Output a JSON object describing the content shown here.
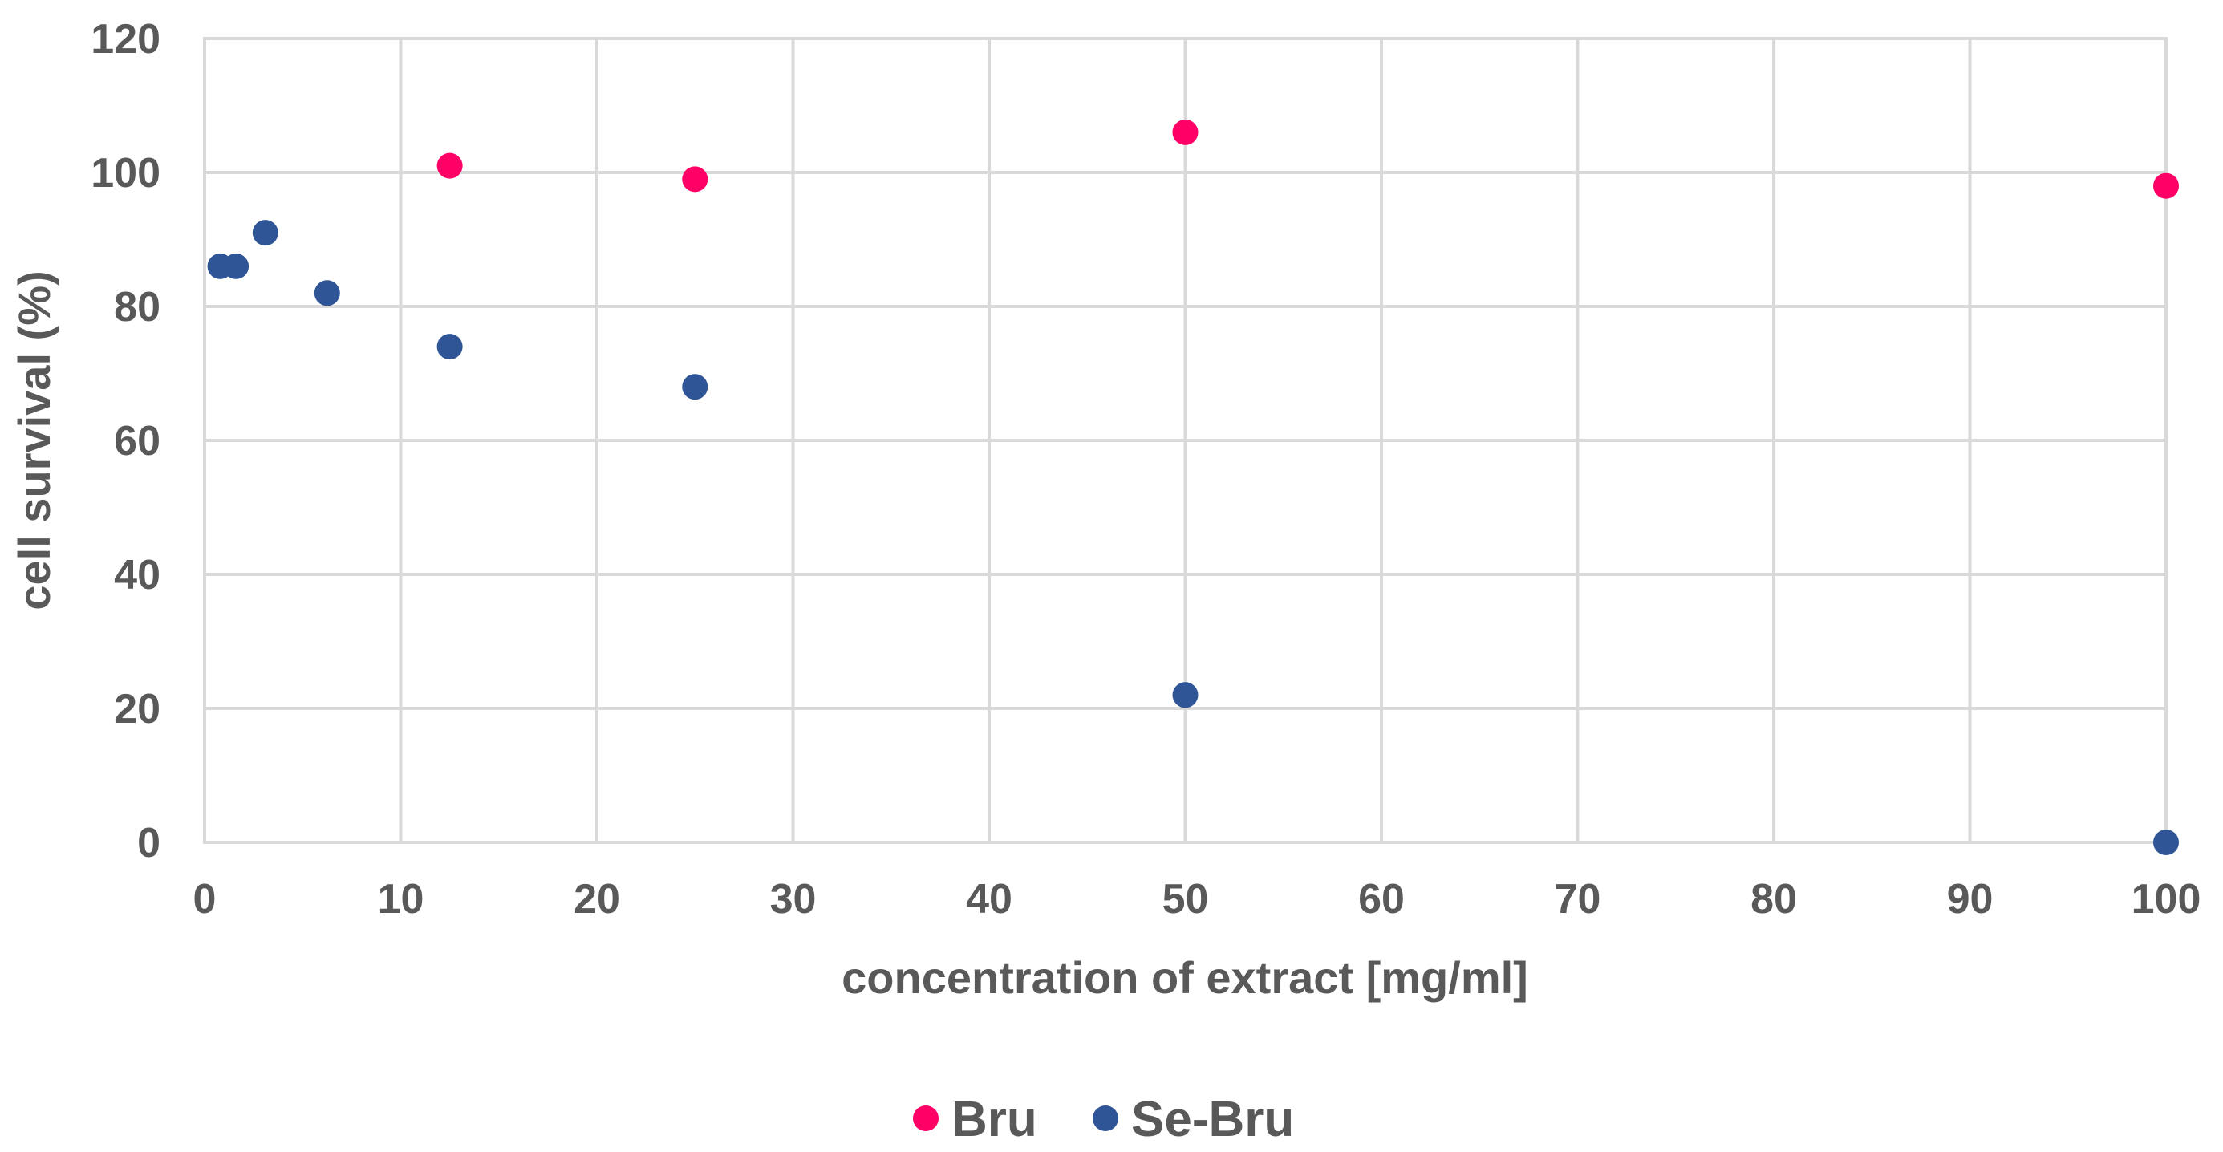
{
  "chart_data": {
    "type": "scatter",
    "xlabel": "concentration of extract [mg/ml]",
    "ylabel": "cell survival (%)",
    "xlim": [
      0,
      100
    ],
    "ylim": [
      0,
      120
    ],
    "x_ticks": [
      "0",
      "10",
      "20",
      "30",
      "40",
      "50",
      "60",
      "70",
      "80",
      "90",
      "100"
    ],
    "y_ticks": [
      "0",
      "20",
      "40",
      "60",
      "80",
      "100",
      "120"
    ],
    "grid": true,
    "legend_position": "bottom",
    "series": [
      {
        "name": "Bru",
        "color": "#ff0066",
        "points": [
          {
            "x": 12.5,
            "y": 101
          },
          {
            "x": 25,
            "y": 99
          },
          {
            "x": 50,
            "y": 106
          },
          {
            "x": 100,
            "y": 98
          }
        ]
      },
      {
        "name": "Se-Bru",
        "color": "#2f5597",
        "points": [
          {
            "x": 0.8,
            "y": 86
          },
          {
            "x": 1.6,
            "y": 86
          },
          {
            "x": 3.1,
            "y": 91
          },
          {
            "x": 6.25,
            "y": 82
          },
          {
            "x": 12.5,
            "y": 74
          },
          {
            "x": 25,
            "y": 68
          },
          {
            "x": 50,
            "y": 22
          },
          {
            "x": 100,
            "y": 0
          }
        ]
      }
    ]
  }
}
